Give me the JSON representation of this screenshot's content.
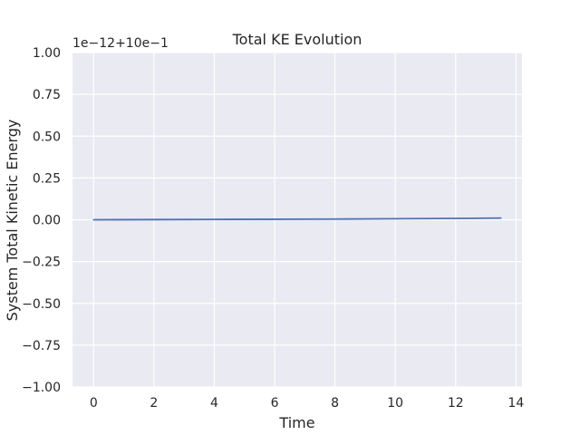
{
  "chart_data": {
    "type": "line",
    "title": "Total KE Evolution",
    "xlabel": "Time",
    "ylabel": "System Total Kinetic Energy",
    "offset_label": "1e−12+10e−1",
    "xlim": [
      -0.7,
      14.2
    ],
    "ylim": [
      -1.0,
      1.0
    ],
    "x_ticks": [
      0,
      2,
      4,
      6,
      8,
      10,
      12,
      14
    ],
    "x_tick_labels": [
      "0",
      "2",
      "4",
      "6",
      "8",
      "10",
      "12",
      "14"
    ],
    "y_ticks": [
      -1.0,
      -0.75,
      -0.5,
      -0.25,
      0.0,
      0.25,
      0.5,
      0.75,
      1.0
    ],
    "y_tick_labels": [
      "−1.00",
      "−0.75",
      "−0.50",
      "−0.25",
      "0.00",
      "0.25",
      "0.50",
      "0.75",
      "1.00"
    ],
    "grid": true,
    "series": [
      {
        "color": "#4c72b0",
        "x": [
          0,
          2,
          4,
          6,
          8,
          10,
          12,
          13.5
        ],
        "y": [
          0.0,
          0.001,
          0.002,
          0.003,
          0.004,
          0.006,
          0.008,
          0.01
        ]
      }
    ],
    "colors": {
      "background": "#eaeaf2",
      "grid": "#ffffff",
      "line": "#4c72b0",
      "text": "#262626"
    }
  }
}
